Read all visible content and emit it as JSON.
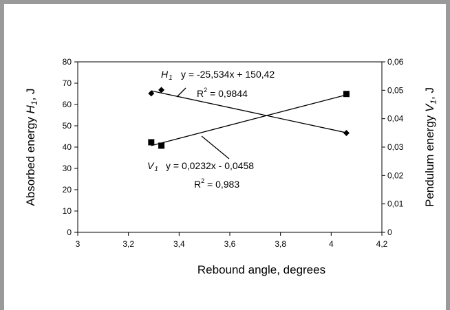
{
  "chart_data": {
    "type": "scatter",
    "xlabel": "Rebound angle, degrees",
    "ylabel_left": {
      "text": "Absorbed energy ",
      "var": "H",
      "sub": "1",
      "unit": ", J"
    },
    "ylabel_right": {
      "text": "Pendulum energy ",
      "var": "V",
      "sub": "1",
      "unit": ", J"
    },
    "xlim": [
      3,
      4.2
    ],
    "x_ticks": [
      "3",
      "3,2",
      "3,4",
      "3,6",
      "3,8",
      "4",
      "4,2"
    ],
    "ylim_left": [
      0,
      80
    ],
    "y_ticks_left": [
      "0",
      "10",
      "20",
      "30",
      "40",
      "50",
      "60",
      "70",
      "80"
    ],
    "ylim_right": [
      0,
      0.06
    ],
    "y_ticks_right": [
      "0",
      "0,01",
      "0,02",
      "0,03",
      "0,04",
      "0,05",
      "0,06"
    ],
    "series": [
      {
        "name": "H1",
        "axis": "left",
        "marker": "diamond",
        "x": [
          3.29,
          3.33,
          4.06
        ],
        "y": [
          65.2,
          66.8,
          46.6
        ],
        "trend": {
          "slope": -25.534,
          "intercept": 150.42,
          "x_range": [
            3.29,
            4.06
          ]
        },
        "label": {
          "var": "H",
          "sub": "1"
        },
        "equation": "y = -25,534x + 150,42",
        "r2_prefix": "R",
        "r2_exp": "2",
        "r2_value": " = 0,9844"
      },
      {
        "name": "V1",
        "axis": "right",
        "marker": "square",
        "x": [
          3.29,
          3.33,
          4.06
        ],
        "y": [
          0.0317,
          0.0305,
          0.0487
        ],
        "trend": {
          "slope": 0.0232,
          "intercept": -0.0458,
          "x_range": [
            3.29,
            4.06
          ]
        },
        "label": {
          "var": "V",
          "sub": "1"
        },
        "equation": "y = 0,0232x - 0,0458",
        "r2_prefix": "R",
        "r2_exp": "2",
        "r2_value": " = 0,983"
      }
    ]
  }
}
